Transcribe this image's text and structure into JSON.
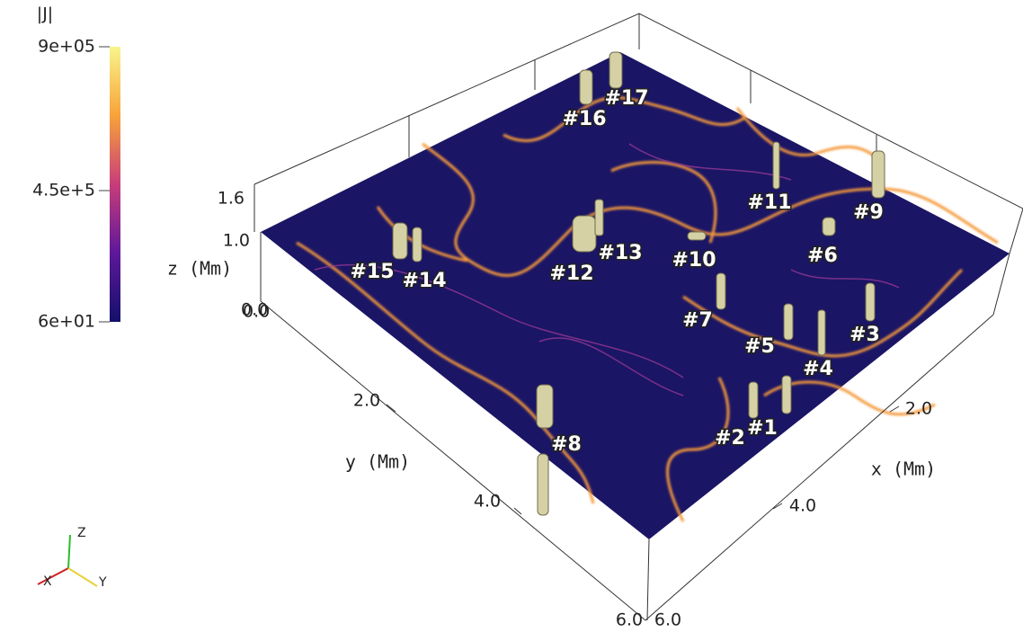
{
  "colorbar": {
    "title": "|J|",
    "labels": [
      "9e+05",
      "4.5e+5",
      "6e+01"
    ]
  },
  "axes": {
    "z": {
      "title": "z (Mm)",
      "ticks": [
        "1.6",
        "1.0",
        "0.0"
      ]
    },
    "y": {
      "title": "y (Mm)",
      "ticks": [
        "0.0",
        "2.0",
        "4.0",
        "6.0"
      ]
    },
    "x": {
      "title": "x (Mm)",
      "ticks": [
        "6.0",
        "4.0",
        "2.0"
      ]
    }
  },
  "orientation": {
    "labels": [
      "Z",
      "X",
      "Y"
    ]
  },
  "features": [
    "#1",
    "#2",
    "#3",
    "#4",
    "#5",
    "#6",
    "#7",
    "#8",
    "#9",
    "#10",
    "#11",
    "#12",
    "#13",
    "#14",
    "#15",
    "#16",
    "#17"
  ]
}
